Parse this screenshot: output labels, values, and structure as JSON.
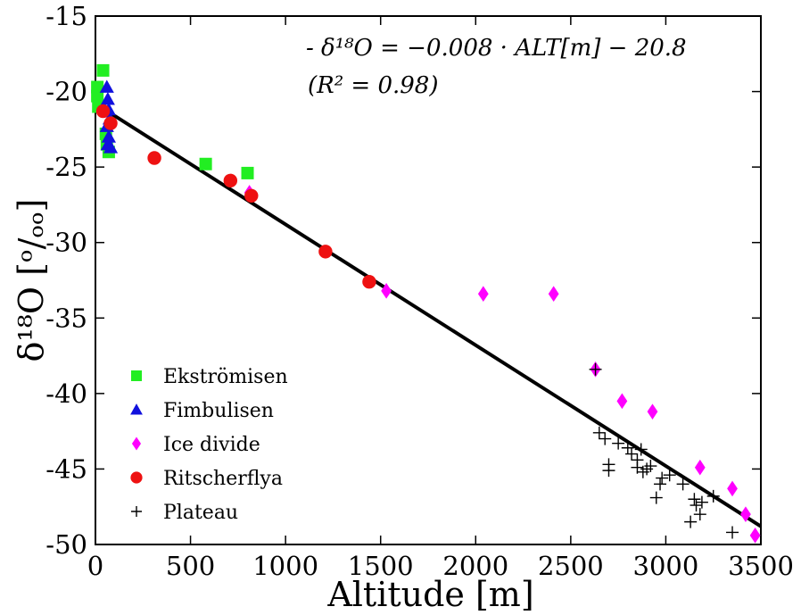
{
  "chart_data": {
    "type": "scatter",
    "xlabel": "Altitude [m]",
    "ylabel": "δ¹⁸O [ᵒ/ₒₒ]",
    "xlim": [
      0,
      3500
    ],
    "ylim": [
      -50,
      -15
    ],
    "xticks": [
      0,
      500,
      1000,
      1500,
      2000,
      2500,
      3000,
      3500
    ],
    "yticks": [
      -50,
      -45,
      -40,
      -35,
      -30,
      -25,
      -20,
      -15
    ],
    "xtick_labels": [
      "0",
      "500",
      "1000",
      "1500",
      "2000",
      "2500",
      "3000",
      "3500"
    ],
    "ytick_labels": [
      "-50",
      "-45",
      "-40",
      "-35",
      "-30",
      "-25",
      "-20",
      "-15"
    ],
    "grid": false,
    "legend_position": "lower-left",
    "annotation": {
      "line1": "- δ¹⁸O = −0.008 · ALT[m] − 20.8",
      "line2": "(R² = 0.98)"
    },
    "fit": {
      "slope": -0.008,
      "intercept": -20.8,
      "x_range": [
        0,
        3500
      ],
      "color": "#000000"
    },
    "series": [
      {
        "name": "Ekströmisen",
        "marker": "square",
        "color": "#22ee22",
        "points": [
          [
            10,
            -19.7
          ],
          [
            10,
            -20.3
          ],
          [
            15,
            -21.0
          ],
          [
            40,
            -18.6
          ],
          [
            55,
            -22.8
          ],
          [
            60,
            -23.5
          ],
          [
            70,
            -24.0
          ],
          [
            580,
            -24.8
          ],
          [
            800,
            -25.4
          ]
        ]
      },
      {
        "name": "Fimbulisen",
        "marker": "triangle",
        "color": "#1111dd",
        "points": [
          [
            60,
            -19.7
          ],
          [
            65,
            -20.5
          ],
          [
            70,
            -21.2
          ],
          [
            75,
            -21.8
          ],
          [
            60,
            -22.3
          ],
          [
            70,
            -23.0
          ],
          [
            65,
            -23.5
          ],
          [
            80,
            -23.7
          ]
        ]
      },
      {
        "name": "Ice divide",
        "marker": "diamond",
        "color": "#ff00ff",
        "points": [
          [
            810,
            -26.7
          ],
          [
            1530,
            -33.2
          ],
          [
            2040,
            -33.4
          ],
          [
            2410,
            -33.4
          ],
          [
            2630,
            -38.4
          ],
          [
            2770,
            -40.5
          ],
          [
            2930,
            -41.2
          ],
          [
            3180,
            -44.9
          ],
          [
            3350,
            -46.3
          ],
          [
            3420,
            -48.0
          ],
          [
            3470,
            -49.4
          ]
        ]
      },
      {
        "name": "Ritscherflya",
        "marker": "circle",
        "color": "#ee1111",
        "points": [
          [
            40,
            -21.3
          ],
          [
            80,
            -22.1
          ],
          [
            310,
            -24.4
          ],
          [
            710,
            -25.9
          ],
          [
            820,
            -26.9
          ],
          [
            1210,
            -30.6
          ],
          [
            1440,
            -32.6
          ]
        ]
      },
      {
        "name": "Plateau",
        "marker": "plus",
        "color": "#000000",
        "points": [
          [
            2630,
            -38.4
          ],
          [
            2650,
            -42.6
          ],
          [
            2680,
            -43.0
          ],
          [
            2700,
            -44.7
          ],
          [
            2700,
            -45.1
          ],
          [
            2750,
            -43.3
          ],
          [
            2800,
            -43.6
          ],
          [
            2820,
            -44.0
          ],
          [
            2850,
            -44.4
          ],
          [
            2850,
            -44.9
          ],
          [
            2870,
            -43.7
          ],
          [
            2880,
            -45.2
          ],
          [
            2900,
            -45.0
          ],
          [
            2920,
            -44.8
          ],
          [
            2950,
            -46.9
          ],
          [
            2970,
            -46.0
          ],
          [
            2980,
            -45.6
          ],
          [
            3020,
            -45.4
          ],
          [
            3090,
            -46.0
          ],
          [
            3130,
            -48.5
          ],
          [
            3150,
            -47.0
          ],
          [
            3160,
            -47.4
          ],
          [
            3180,
            -48.0
          ],
          [
            3190,
            -47.2
          ],
          [
            3250,
            -46.8
          ],
          [
            3350,
            -49.2
          ]
        ]
      }
    ]
  }
}
